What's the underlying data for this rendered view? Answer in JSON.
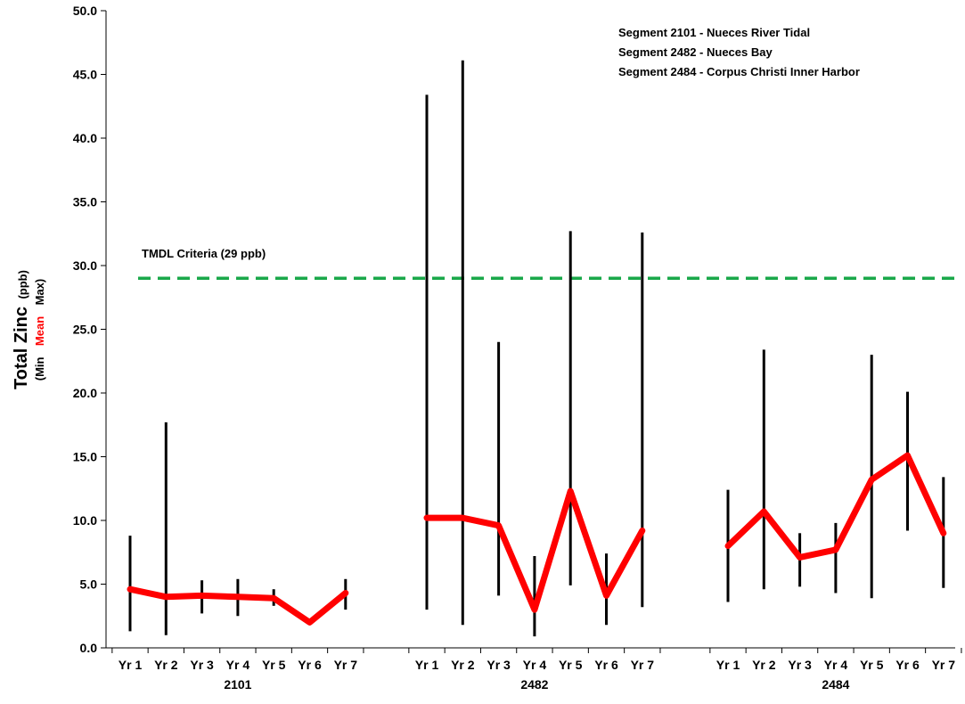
{
  "chart_data": {
    "type": "line",
    "title": "",
    "ylabel": {
      "main": "Total Zinc",
      "unit": "(ppb)",
      "sub_min": "(Min",
      "sub_mean": "Mean",
      "sub_max": "Max)"
    },
    "ylim": [
      0,
      50
    ],
    "yticks": [
      "0.0",
      "5.0",
      "10.0",
      "15.0",
      "20.0",
      "25.0",
      "30.0",
      "35.0",
      "40.0",
      "45.0",
      "50.0"
    ],
    "grid": false,
    "legend_position": "top-right",
    "legend_lines": [
      "Segment 2101 - Nueces River Tidal",
      "Segment 2482 - Nueces Bay",
      "Segment 2484 - Corpus Christi Inner Harbor"
    ],
    "criteria": {
      "label": "TMDL Criteria (29 ppb)",
      "value": 29,
      "color": "#1aa84a"
    },
    "mean_color": "#ff0000",
    "range_color": "#000000",
    "groups": [
      {
        "name": "2101",
        "categories": [
          "Yr 1",
          "Yr 2",
          "Yr 3",
          "Yr 4",
          "Yr 5",
          "Yr 6",
          "Yr 7"
        ],
        "min": [
          1.3,
          1.0,
          2.7,
          2.5,
          3.3,
          2.0,
          3.0
        ],
        "mean": [
          4.6,
          4.0,
          4.1,
          4.0,
          3.9,
          2.0,
          4.3
        ],
        "max": [
          8.8,
          17.7,
          5.3,
          5.4,
          4.6,
          2.0,
          5.4
        ]
      },
      {
        "name": "2482",
        "categories": [
          "Yr 1",
          "Yr 2",
          "Yr 3",
          "Yr 4",
          "Yr 5",
          "Yr 6",
          "Yr 7"
        ],
        "min": [
          3.0,
          1.8,
          4.1,
          0.9,
          4.9,
          1.8,
          3.2
        ],
        "mean": [
          10.2,
          10.2,
          9.6,
          3.0,
          12.3,
          4.1,
          9.2
        ],
        "max": [
          43.4,
          46.1,
          24.0,
          7.2,
          32.7,
          7.4,
          32.6
        ]
      },
      {
        "name": "2484",
        "categories": [
          "Yr 1",
          "Yr 2",
          "Yr 3",
          "Yr 4",
          "Yr 5",
          "Yr 6",
          "Yr 7"
        ],
        "min": [
          3.6,
          4.6,
          4.8,
          4.3,
          3.9,
          9.2,
          4.7
        ],
        "mean": [
          8.0,
          10.7,
          7.1,
          7.7,
          13.2,
          15.1,
          9.0
        ],
        "max": [
          12.4,
          23.4,
          9.0,
          9.8,
          23.0,
          20.1,
          13.4
        ]
      }
    ]
  }
}
